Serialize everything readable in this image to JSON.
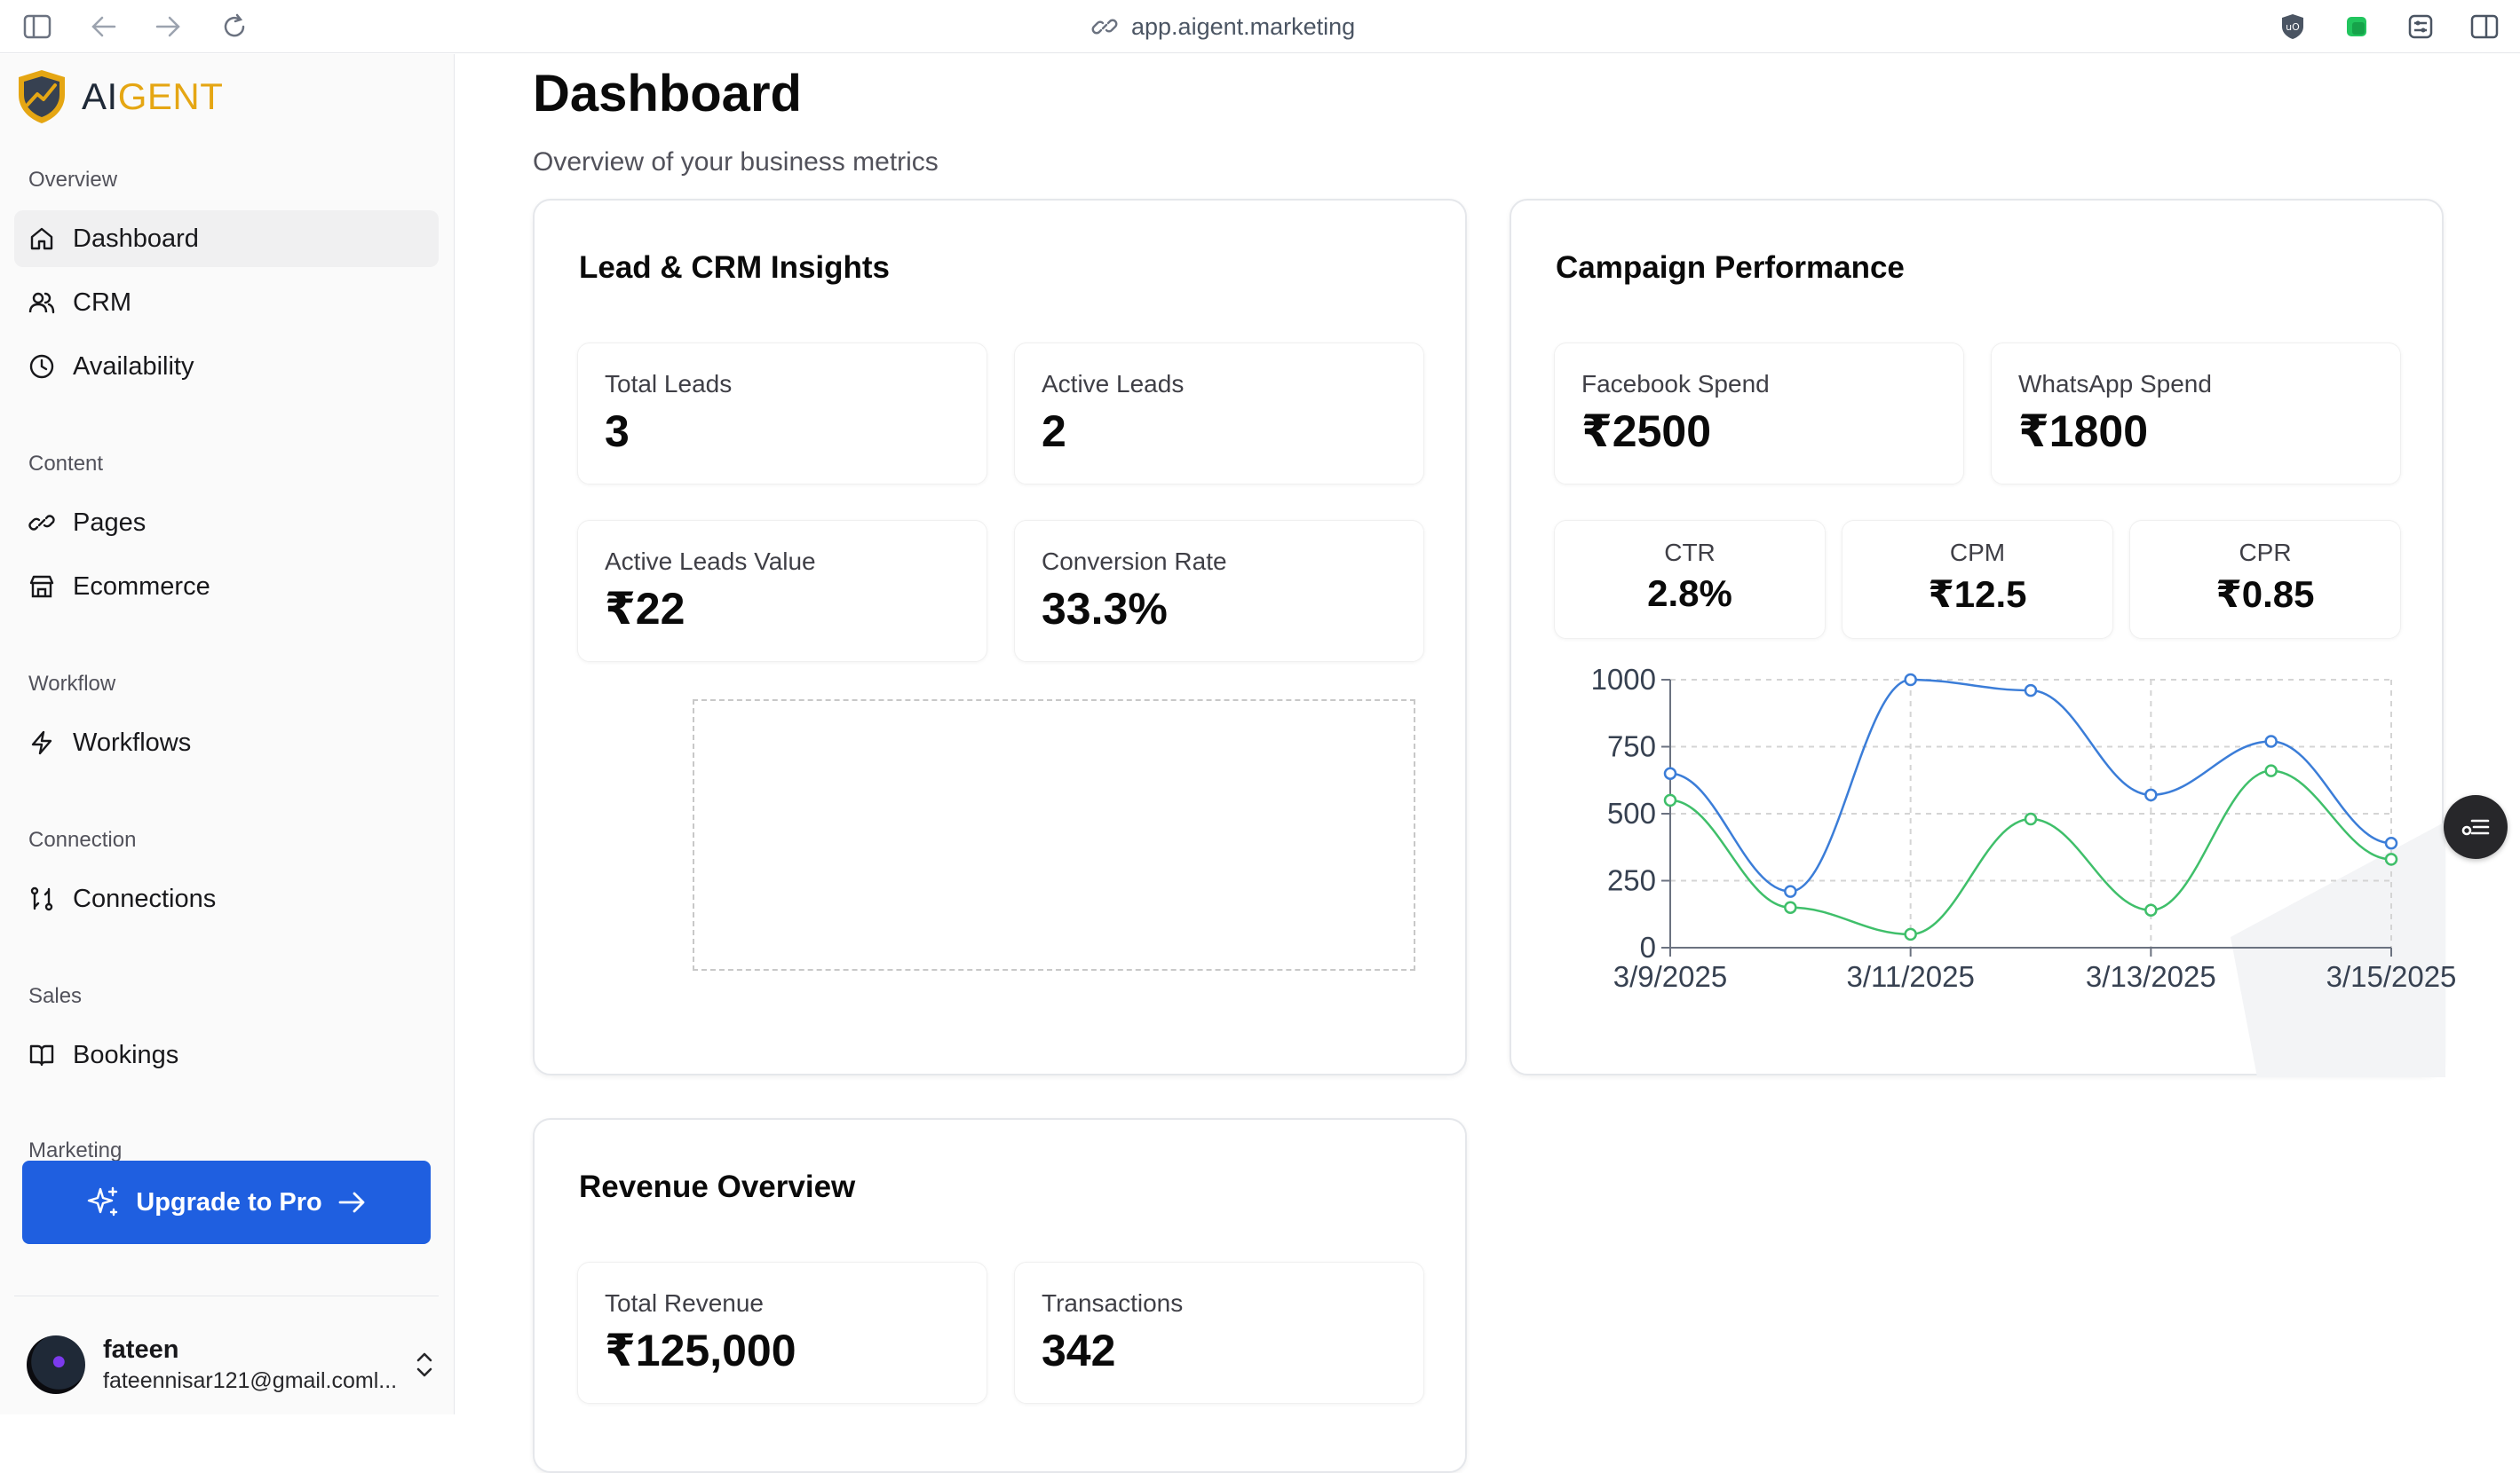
{
  "browser": {
    "url": "app.aigent.marketing"
  },
  "sidebar": {
    "logo": {
      "part1": "AI",
      "part2": "GENT"
    },
    "sections": [
      {
        "label": "Overview",
        "items": [
          {
            "label": "Dashboard",
            "icon": "home-icon",
            "active": true
          },
          {
            "label": "CRM",
            "icon": "users-icon"
          },
          {
            "label": "Availability",
            "icon": "clock-icon"
          }
        ]
      },
      {
        "label": "Content",
        "items": [
          {
            "label": "Pages",
            "icon": "link-icon"
          },
          {
            "label": "Ecommerce",
            "icon": "store-icon"
          }
        ]
      },
      {
        "label": "Workflow",
        "items": [
          {
            "label": "Workflows",
            "icon": "bolt-icon"
          }
        ]
      },
      {
        "label": "Connection",
        "items": [
          {
            "label": "Connections",
            "icon": "connections-icon"
          }
        ]
      },
      {
        "label": "Sales",
        "items": [
          {
            "label": "Bookings",
            "icon": "book-icon"
          }
        ]
      },
      {
        "label": "Marketing",
        "items": []
      }
    ],
    "upgrade_label": "Upgrade to Pro",
    "user": {
      "name": "fateen",
      "email": "fateennisar121@gmail.coml..."
    }
  },
  "header": {
    "title": "Dashboard",
    "subtitle": "Overview of your business metrics"
  },
  "lead_card": {
    "title": "Lead & CRM Insights",
    "stats": [
      {
        "label": "Total Leads",
        "value": "3"
      },
      {
        "label": "Active Leads",
        "value": "2"
      },
      {
        "label": "Active Leads Value",
        "value": "₹22"
      },
      {
        "label": "Conversion Rate",
        "value": "33.3%"
      }
    ]
  },
  "campaign_card": {
    "title": "Campaign Performance",
    "stats": [
      {
        "label": "Facebook Spend",
        "value": "₹2500"
      },
      {
        "label": "WhatsApp Spend",
        "value": "₹1800"
      }
    ],
    "metrics": [
      {
        "label": "CTR",
        "value": "2.8%"
      },
      {
        "label": "CPM",
        "value": "₹12.5"
      },
      {
        "label": "CPR",
        "value": "₹0.85"
      }
    ]
  },
  "revenue_card": {
    "title": "Revenue Overview",
    "stats": [
      {
        "label": "Total Revenue",
        "value": "₹125,000"
      },
      {
        "label": "Transactions",
        "value": "342"
      }
    ]
  },
  "chart_data": {
    "type": "line",
    "x": [
      "3/9/2025",
      "3/10/2025",
      "3/11/2025",
      "3/12/2025",
      "3/13/2025",
      "3/14/2025",
      "3/15/2025"
    ],
    "x_tick_labels": [
      "3/9/2025",
      "3/11/2025",
      "3/13/2025",
      "3/15/2025"
    ],
    "series": [
      {
        "values": [
          650,
          210,
          1000,
          960,
          570,
          770,
          390
        ],
        "color": "#3b7dd8"
      },
      {
        "values": [
          550,
          150,
          50,
          480,
          140,
          660,
          330
        ],
        "color": "#3fbf6a"
      }
    ],
    "ylim": [
      0,
      1000
    ],
    "y_ticks": [
      "0",
      "250",
      "500",
      "750",
      "1000"
    ],
    "grid": true,
    "legend": "none"
  }
}
